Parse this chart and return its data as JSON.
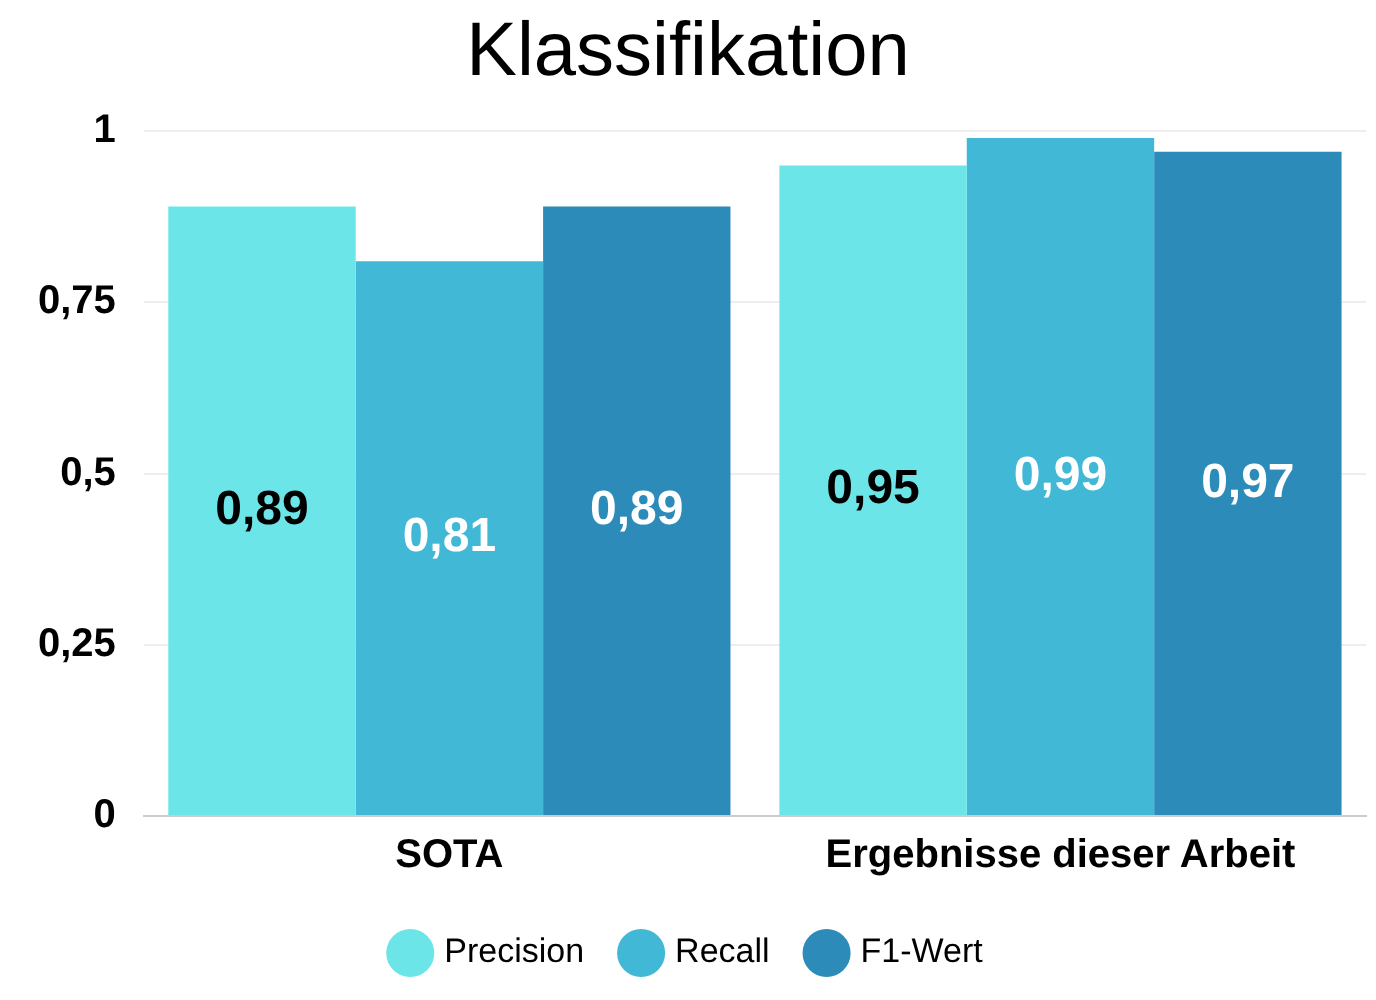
{
  "chart_data": {
    "type": "bar",
    "title": "Klassifikation",
    "categories": [
      "SOTA",
      "Ergebnisse dieser Arbeit"
    ],
    "series": [
      {
        "name": "Precision",
        "color": "#6ce5e8",
        "values": [
          0.89,
          0.95
        ],
        "value_labels": [
          "0,89",
          "0,95"
        ]
      },
      {
        "name": "Recall",
        "color": "#41b8d5",
        "values": [
          0.81,
          0.99
        ],
        "value_labels": [
          "0,81",
          "0,99"
        ]
      },
      {
        "name": "F1-Wert",
        "color": "#2d8bba",
        "values": [
          0.89,
          0.97
        ],
        "value_labels": [
          "0,89",
          "0,97"
        ]
      }
    ],
    "ylim": [
      0,
      1
    ],
    "yticks": [
      0,
      {
        "value": 0.25,
        "label": "0,25"
      },
      {
        "value": 0.5,
        "label": "0,5"
      },
      {
        "value": 0.75,
        "label": "0,75"
      },
      1
    ],
    "grid": "y",
    "legend": "bottom"
  }
}
